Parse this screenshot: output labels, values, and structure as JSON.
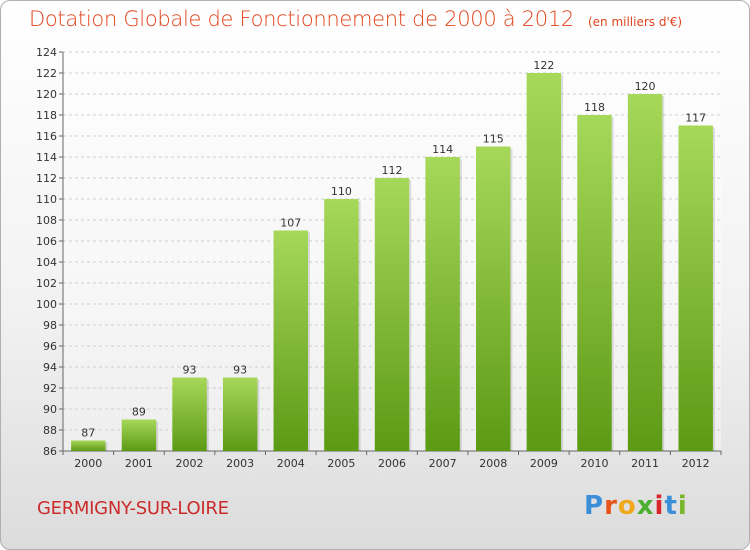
{
  "header": {
    "title": "Dotation Globale de Fonctionnement de 2000 à 2012",
    "unit": "(en milliers d'€)"
  },
  "footer": {
    "commune": "GERMIGNY-SUR-LOIRE",
    "logo_letters": [
      "P",
      "r",
      "o",
      "x",
      "i",
      "t",
      "i"
    ],
    "logo_colors": [
      "#3a8fd8",
      "#e8531a",
      "#f0a81c",
      "#4caf32",
      "#d8262c",
      "#3a8fd8",
      "#7ab62c"
    ]
  },
  "colors": {
    "bar_top": "#a6d85a",
    "bar_bottom": "#5c9a14",
    "title": "#e0441c",
    "commune": "#cc2b2b"
  },
  "chart_data": {
    "type": "bar",
    "title": "Dotation Globale de Fonctionnement de 2000 à 2012",
    "subtitle": "(en milliers d'€)",
    "xlabel": "",
    "ylabel": "",
    "categories": [
      "2000",
      "2001",
      "2002",
      "2003",
      "2004",
      "2005",
      "2006",
      "2007",
      "2008",
      "2009",
      "2010",
      "2011",
      "2012"
    ],
    "values": [
      87,
      89,
      93,
      93,
      107,
      110,
      112,
      114,
      115,
      122,
      118,
      120,
      117
    ],
    "ylim": [
      86,
      124
    ],
    "yticks": [
      86,
      88,
      90,
      92,
      94,
      96,
      98,
      100,
      102,
      104,
      106,
      108,
      110,
      112,
      114,
      116,
      118,
      120,
      122,
      124
    ],
    "grid": true,
    "legend": "none"
  }
}
